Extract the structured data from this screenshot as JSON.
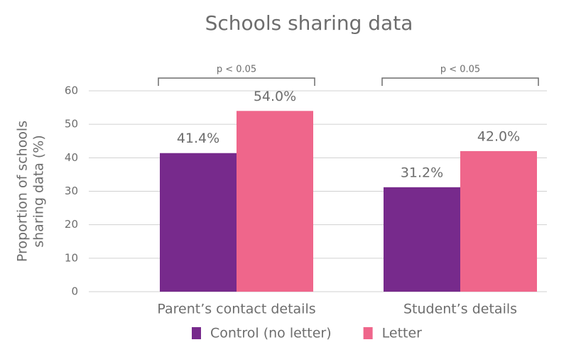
{
  "chart_data": {
    "type": "bar",
    "title": "Schools sharing data",
    "ylabel": [
      "Proportion of schools",
      "sharing data (%)"
    ],
    "categories": [
      "Parent’s contact details",
      "Student’s details"
    ],
    "series": [
      {
        "name": "Control (no letter)",
        "color": "#772a8c",
        "values": [
          41.4,
          31.2
        ],
        "value_labels": [
          "41.4%",
          "31.2%"
        ]
      },
      {
        "name": "Letter",
        "color": "#ef668b",
        "values": [
          54.0,
          42.0
        ],
        "value_labels": [
          "54.0%",
          "42.0%"
        ]
      }
    ],
    "annotations": [
      "p < 0.05",
      "p < 0.05"
    ],
    "ylim": [
      0,
      60
    ],
    "yticks": [
      0,
      10,
      20,
      30,
      40,
      50,
      60
    ],
    "grid": true,
    "legend": "bottom"
  }
}
